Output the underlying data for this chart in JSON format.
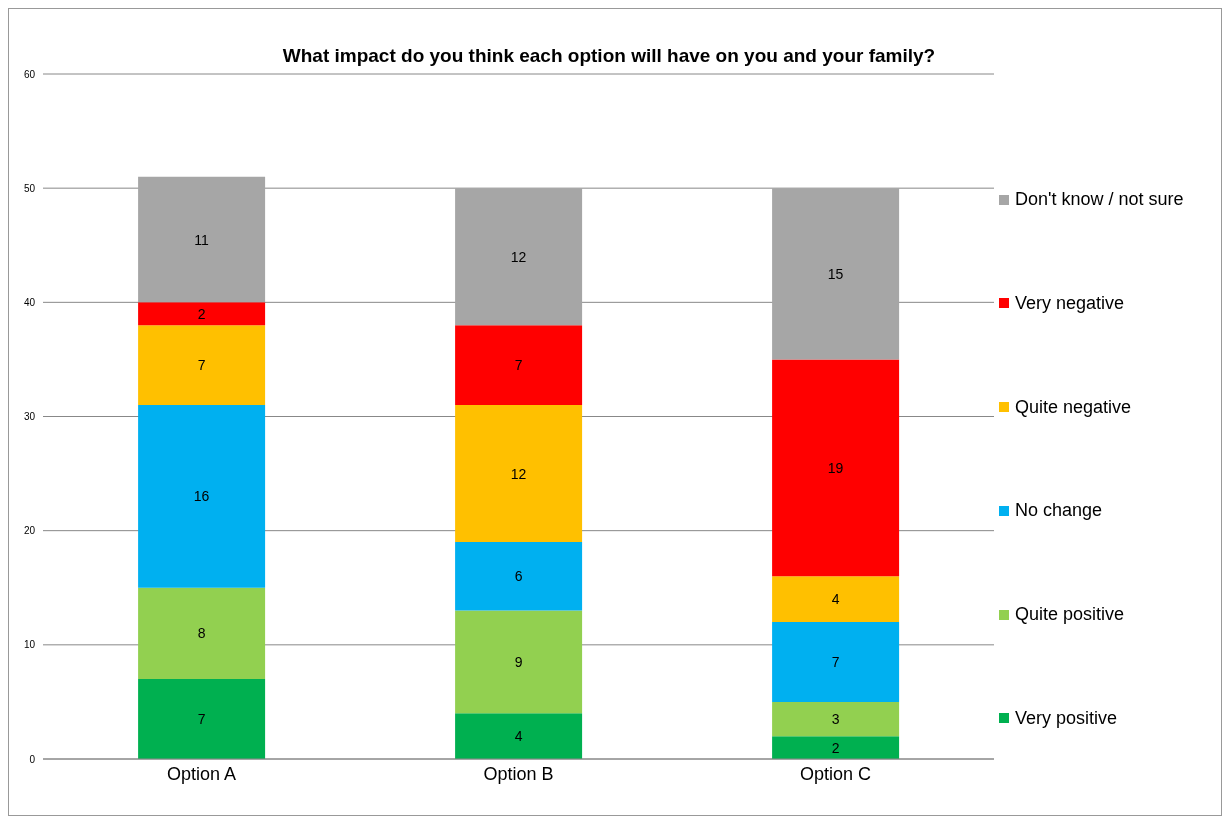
{
  "chart_data": {
    "type": "bar",
    "title": "What impact do you think each option will have on you and your family?",
    "categories": [
      "Option A",
      "Option B",
      "Option C"
    ],
    "stacked": true,
    "series": [
      {
        "name": "Very positive",
        "color": "#00b050",
        "values": [
          7,
          4,
          2
        ]
      },
      {
        "name": "Quite positive",
        "color": "#92d050",
        "values": [
          8,
          9,
          3
        ]
      },
      {
        "name": "No change",
        "color": "#00b0f0",
        "values": [
          16,
          6,
          7
        ]
      },
      {
        "name": "Quite negative",
        "color": "#ffc000",
        "values": [
          7,
          12,
          4
        ]
      },
      {
        "name": "Very negative",
        "color": "#ff0000",
        "values": [
          2,
          7,
          19
        ]
      },
      {
        "name": "Don't know / not sure",
        "color": "#a6a6a6",
        "values": [
          11,
          12,
          15
        ]
      }
    ],
    "ylim": [
      0,
      60
    ],
    "yticks": [
      0,
      10,
      20,
      30,
      40,
      50,
      60
    ],
    "grid": "y",
    "legend": "right",
    "data_labels": true
  }
}
